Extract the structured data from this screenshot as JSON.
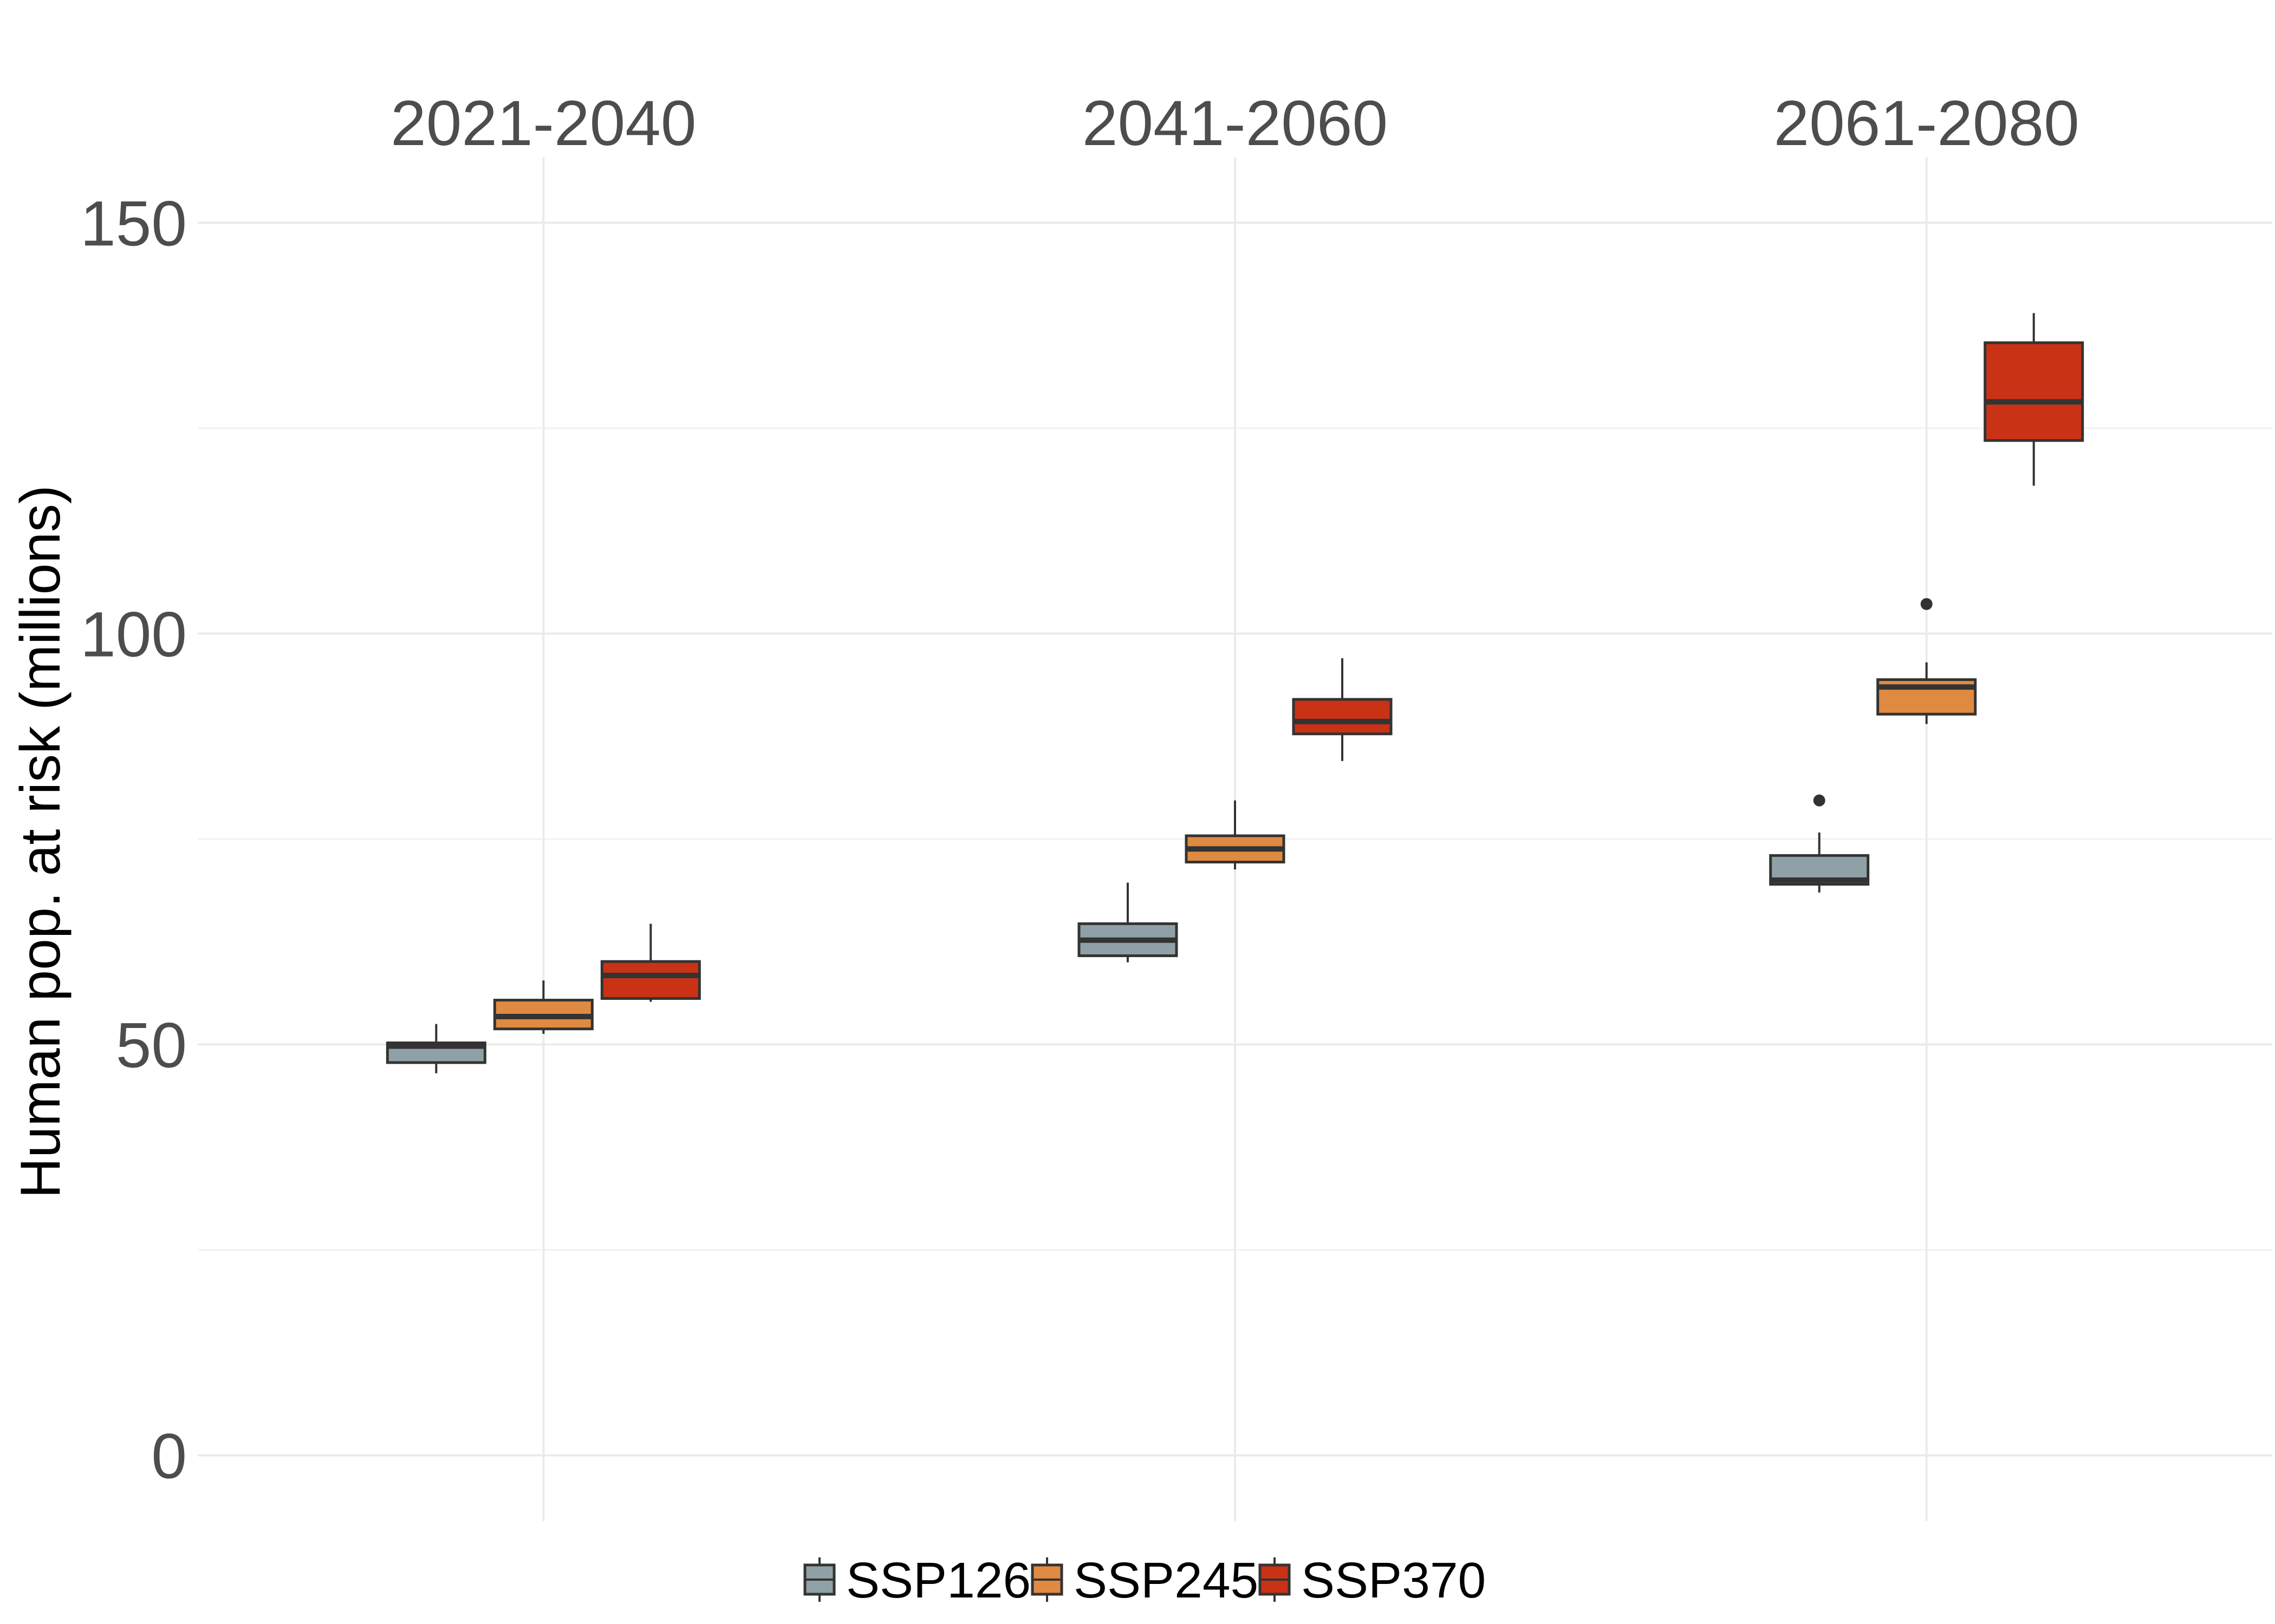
{
  "chart_data": {
    "type": "box",
    "ylabel": "Human pop. at risk (millions)",
    "ylim": [
      -8,
      158
    ],
    "y_ticks": [
      0,
      50,
      100,
      150
    ],
    "y_minor_ticks": [
      25,
      75,
      125
    ],
    "grid": true,
    "legend_position": "bottom",
    "categories": [
      "2021-2040",
      "2041-2060",
      "2061-2080"
    ],
    "series": [
      {
        "name": "SSP126",
        "color": "#8fa1a6",
        "boxes": [
          {
            "min": 46.5,
            "q1": 47.8,
            "median": 49.8,
            "q3": 50.2,
            "max": 52.5,
            "outliers": []
          },
          {
            "min": 60.0,
            "q1": 60.8,
            "median": 62.7,
            "q3": 64.7,
            "max": 69.7,
            "outliers": []
          },
          {
            "min": 68.5,
            "q1": 69.5,
            "median": 70.0,
            "q3": 73.0,
            "max": 75.8,
            "outliers": [
              79.7
            ]
          }
        ]
      },
      {
        "name": "SSP245",
        "color": "#e08a41",
        "boxes": [
          {
            "min": 51.3,
            "q1": 51.9,
            "median": 53.4,
            "q3": 55.4,
            "max": 57.8,
            "outliers": []
          },
          {
            "min": 71.3,
            "q1": 72.2,
            "median": 73.8,
            "q3": 75.4,
            "max": 79.7,
            "outliers": []
          },
          {
            "min": 89.0,
            "q1": 90.2,
            "median": 93.5,
            "q3": 94.4,
            "max": 96.5,
            "outliers": [
              103.6
            ]
          }
        ]
      },
      {
        "name": "SSP370",
        "color": "#c93215",
        "boxes": [
          {
            "min": 55.2,
            "q1": 55.6,
            "median": 58.4,
            "q3": 60.1,
            "max": 64.7,
            "outliers": []
          },
          {
            "min": 84.5,
            "q1": 87.8,
            "median": 89.3,
            "q3": 92.0,
            "max": 97.0,
            "outliers": []
          },
          {
            "min": 118.0,
            "q1": 123.5,
            "median": 128.2,
            "q3": 135.4,
            "max": 139.0,
            "outliers": []
          }
        ]
      }
    ]
  }
}
